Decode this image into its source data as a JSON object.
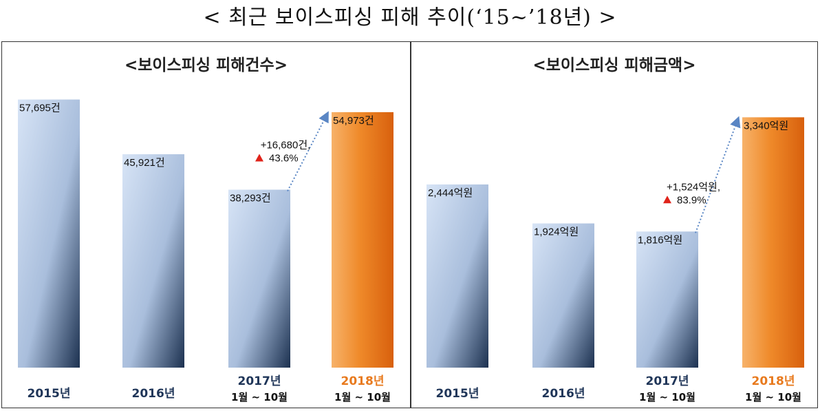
{
  "title": "< 최근 보이스피싱 피해 추이(‘15~’18년) >",
  "colors": {
    "blue_light": "#d7e4f6",
    "blue_dark": "#1c3150",
    "orange_light": "#f7b26a",
    "orange_dark": "#d8600d",
    "triangle": "#e0231a",
    "arrow": "#5a86c4"
  },
  "chart_data": [
    {
      "type": "bar",
      "title": "<보이스피싱 피해건수>",
      "unit": "건",
      "categories": [
        "2015년",
        "2016년",
        "2017년",
        "2018년"
      ],
      "category_notes": [
        "",
        "",
        "1월 ~ 10월",
        "1월 ~ 10월"
      ],
      "values": [
        57695,
        45921,
        38293,
        54973
      ],
      "value_labels": [
        "57,695건",
        "45,921건",
        "38,293건",
        "54,973건"
      ],
      "highlight_index": 3,
      "annotation": {
        "line1": "+16,680건,",
        "line2": "43.6%",
        "from_index": 2,
        "to_index": 3
      },
      "ylim": [
        0,
        60000
      ]
    },
    {
      "type": "bar",
      "title": "<보이스피싱 피해금액>",
      "unit": "억원",
      "categories": [
        "2015년",
        "2016년",
        "2017년",
        "2018년"
      ],
      "category_notes": [
        "",
        "",
        "1월 ~ 10월",
        "1월 ~ 10월"
      ],
      "values": [
        2444,
        1924,
        1816,
        3340
      ],
      "value_labels": [
        "2,444억원",
        "1,924억원",
        "1,816억원",
        "3,340억원"
      ],
      "highlight_index": 3,
      "annotation": {
        "line1": "+1,524억원,",
        "line2": "83.9%",
        "from_index": 2,
        "to_index": 3
      },
      "ylim": [
        0,
        3720
      ]
    }
  ]
}
